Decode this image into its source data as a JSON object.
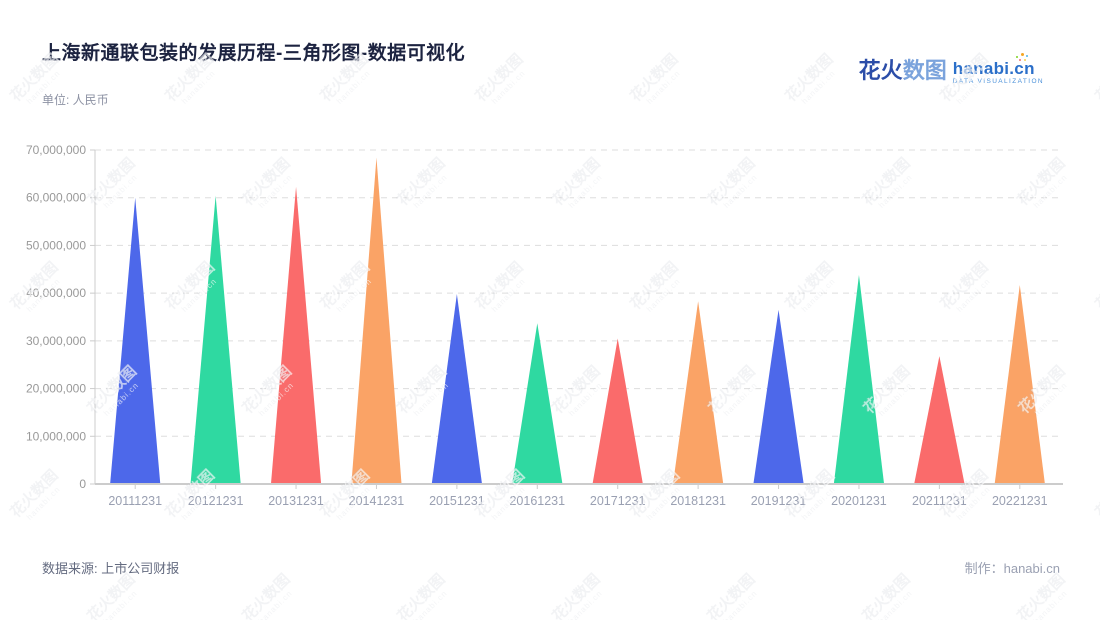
{
  "header": {
    "title": "上海新通联包装的发展历程-三角形图-数据可视化",
    "unit_label": "单位: 人民币"
  },
  "logo": {
    "cn_primary": "花火",
    "cn_secondary": "数图",
    "domain": "hanabi.cn",
    "tagline": "DATA VISUALIZATION"
  },
  "watermark": {
    "text_cn": "花火数图",
    "text_en": "hanabi.cn"
  },
  "footer": {
    "source": "数据来源: 上市公司财报",
    "credit": "制作：hanabi.cn"
  },
  "chart_data": {
    "type": "bar",
    "shape": "triangle",
    "title": "上海新通联包装的发展历程",
    "unit": "人民币",
    "categories": [
      "20111231",
      "20121231",
      "20131231",
      "20141231",
      "20151231",
      "20161231",
      "20171231",
      "20181231",
      "20191231",
      "20201231",
      "20211231",
      "20221231"
    ],
    "values": [
      60000000,
      60400000,
      62300000,
      68400000,
      39800000,
      33700000,
      30500000,
      38300000,
      36500000,
      43800000,
      26800000,
      41700000
    ],
    "colors": [
      "#4d68ea",
      "#2fd9a1",
      "#fa6b6b",
      "#faa366"
    ],
    "ylim": [
      0,
      70000000
    ],
    "ytick_interval": 10000000,
    "ytick_labels": [
      "0",
      "10,000,000",
      "20,000,000",
      "30,000,000",
      "40,000,000",
      "50,000,000",
      "60,000,000",
      "70,000,000"
    ],
    "grid": true,
    "grid_style": "dashed",
    "legend": "none",
    "axis_color": "#cccccc",
    "ylabel_color": "#999999",
    "xlabel_color": "#9aa0b2"
  }
}
